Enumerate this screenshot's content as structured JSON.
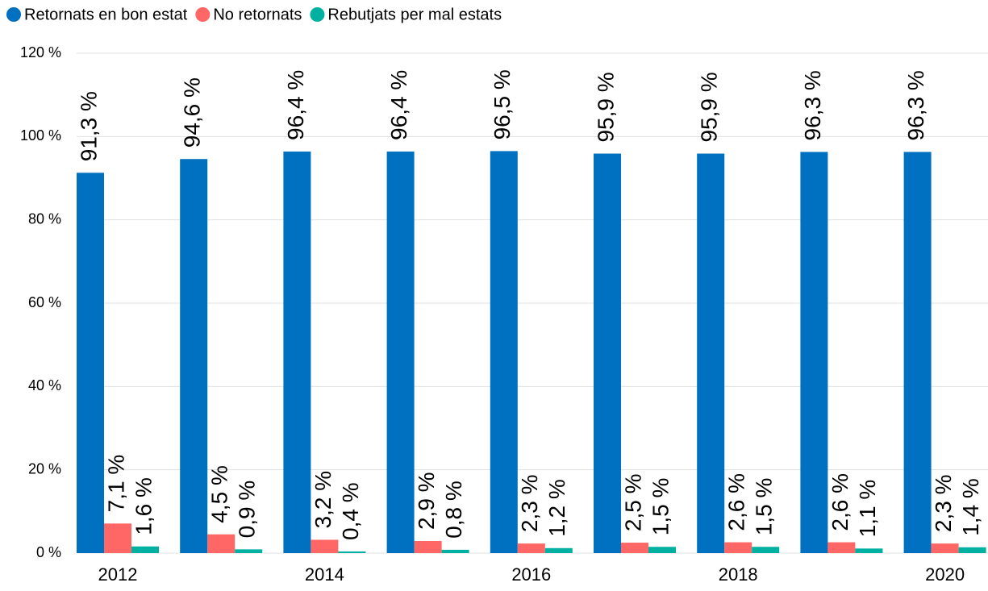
{
  "chart_data": {
    "type": "bar",
    "categories": [
      "2012",
      null,
      "2014",
      null,
      "2016",
      null,
      "2018",
      null,
      "2020"
    ],
    "series": [
      {
        "name": "Retornats en bon estat",
        "color": "#0070c0",
        "label_color": "#1a1ad6",
        "values": [
          91.3,
          94.6,
          96.4,
          96.4,
          96.5,
          95.9,
          95.9,
          96.3,
          96.3
        ],
        "value_labels": [
          "91,3 %",
          "94,6 %",
          "96,4 %",
          "96,4 %",
          "96,5 %",
          "95,9 %",
          "95,9 %",
          "96,3 %",
          "96,3 %"
        ]
      },
      {
        "name": "No retornats",
        "color": "#ff6666",
        "label_color": "#ff6b6b",
        "values": [
          7.1,
          4.5,
          3.2,
          2.9,
          2.3,
          2.5,
          2.6,
          2.6,
          2.3
        ],
        "value_labels": [
          "7,1 %",
          "4,5 %",
          "3,2 %",
          "2,9 %",
          "2,3 %",
          "2,5 %",
          "2,6 %",
          "2,6 %",
          "2,3 %"
        ]
      },
      {
        "name": "Rebutjats per mal estats",
        "color": "#00b0a0",
        "label_color": "#ff6b6b",
        "values": [
          1.6,
          0.9,
          0.4,
          0.8,
          1.2,
          1.5,
          1.5,
          1.1,
          1.4
        ],
        "value_labels": [
          "1,6 %",
          "0,9 %",
          "0,4 %",
          "0,8 %",
          "1,2 %",
          "1,5 %",
          "1,5 %",
          "1,1 %",
          "1,4 %"
        ]
      }
    ],
    "ylim": [
      0,
      120
    ],
    "yticks": [
      {
        "value": 0,
        "label": "0 %"
      },
      {
        "value": 20,
        "label": "20 %"
      },
      {
        "value": 40,
        "label": "40 %"
      },
      {
        "value": 60,
        "label": "60 %"
      },
      {
        "value": 80,
        "label": "80 %"
      },
      {
        "value": 100,
        "label": "100 %"
      },
      {
        "value": 120,
        "label": "120 %"
      }
    ],
    "grid": true,
    "legend": "top-left"
  }
}
